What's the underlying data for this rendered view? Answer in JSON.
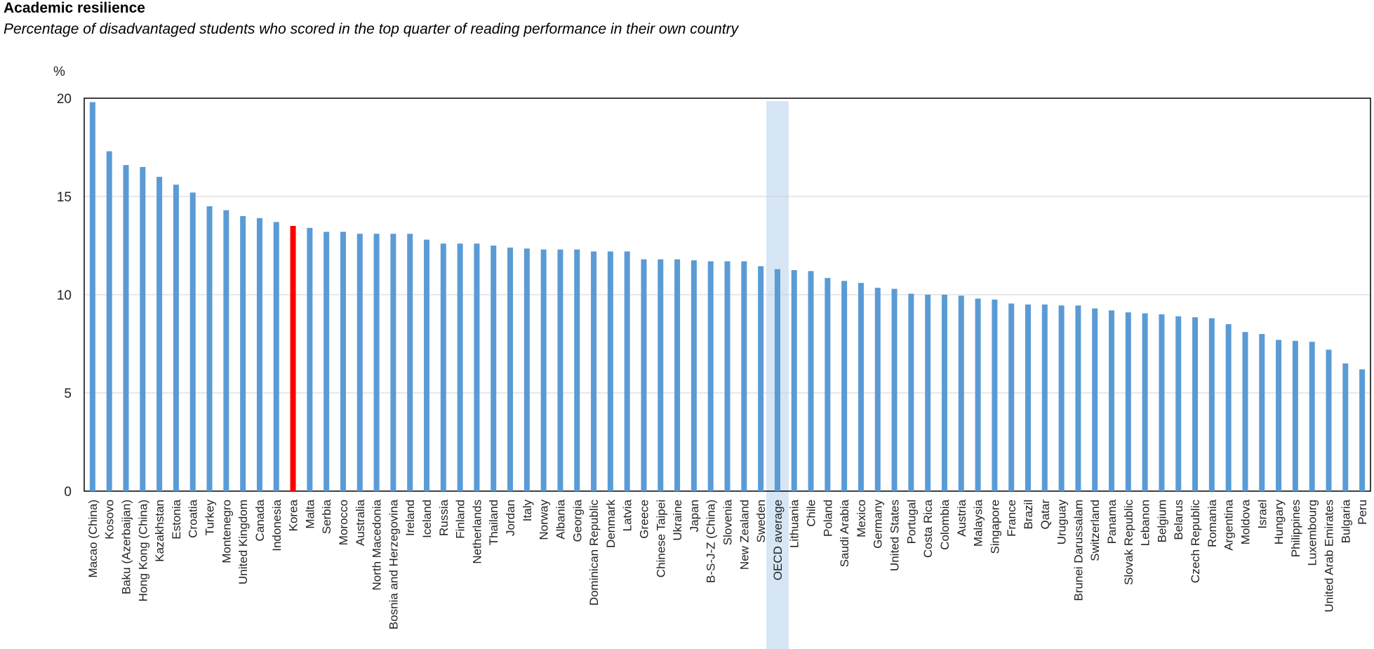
{
  "header": {
    "title": "Academic resilience",
    "subtitle": "Percentage of disadvantaged students who scored in the top quarter of reading performance in their own country"
  },
  "chart_data": {
    "type": "bar",
    "title": "Academic resilience",
    "subtitle": "Percentage of disadvantaged students who scored in the top quarter of reading performance in their own country",
    "ylabel": "%",
    "xlabel": "",
    "ylim": [
      0,
      20
    ],
    "yticks": [
      0,
      5,
      10,
      15,
      20
    ],
    "grid": true,
    "colors": {
      "bar": "#5b9bd5",
      "highlight": "#ff0000",
      "oecd_band": "#d6e6f5",
      "grid": "#d0d0d0"
    },
    "highlight_category": "Korea",
    "band_category": "OECD average",
    "categories": [
      "Macao (China)",
      "Kosovo",
      "Baku (Azerbaijan)",
      "Hong Kong (China)",
      "Kazakhstan",
      "Estonia",
      "Croatia",
      "Turkey",
      "Montenegro",
      "United Kingdom",
      "Canada",
      "Indonesia",
      "Korea",
      "Malta",
      "Serbia",
      "Morocco",
      "Australia",
      "North Macedonia",
      "Bosnia and Herzegovina",
      "Ireland",
      "Iceland",
      "Russia",
      "Finland",
      "Netherlands",
      "Thailand",
      "Jordan",
      "Italy",
      "Norway",
      "Albania",
      "Georgia",
      "Dominican Republic",
      "Denmark",
      "Latvia",
      "Greece",
      "Chinese Taipei",
      "Ukraine",
      "Japan",
      "B-S-J-Z (China)",
      "Slovenia",
      "New Zealand",
      "Sweden",
      "OECD average",
      "Lithuania",
      "Chile",
      "Poland",
      "Saudi Arabia",
      "Mexico",
      "Germany",
      "United States",
      "Portugal",
      "Costa Rica",
      "Colombia",
      "Austria",
      "Malaysia",
      "Singapore",
      "France",
      "Brazil",
      "Qatar",
      "Uruguay",
      "Brunei Darussalam",
      "Switzerland",
      "Panama",
      "Slovak Republic",
      "Lebanon",
      "Belgium",
      "Belarus",
      "Czech Republic",
      "Romania",
      "Argentina",
      "Moldova",
      "Israel",
      "Hungary",
      "Philippines",
      "Luxembourg",
      "United Arab Emirates",
      "Bulgaria",
      "Peru"
    ],
    "values": [
      19.8,
      17.3,
      16.6,
      16.5,
      16.0,
      15.6,
      15.2,
      14.5,
      14.3,
      14.0,
      13.9,
      13.7,
      13.5,
      13.4,
      13.2,
      13.2,
      13.1,
      13.1,
      13.1,
      13.1,
      12.8,
      12.6,
      12.6,
      12.6,
      12.5,
      12.4,
      12.35,
      12.3,
      12.3,
      12.3,
      12.2,
      12.2,
      12.2,
      11.8,
      11.8,
      11.8,
      11.75,
      11.7,
      11.7,
      11.7,
      11.45,
      11.3,
      11.25,
      11.2,
      10.85,
      10.7,
      10.6,
      10.35,
      10.3,
      10.05,
      10.0,
      10.0,
      9.95,
      9.8,
      9.75,
      9.55,
      9.5,
      9.5,
      9.45,
      9.45,
      9.3,
      9.2,
      9.1,
      9.05,
      9.0,
      8.9,
      8.85,
      8.8,
      8.5,
      8.1,
      8.0,
      7.7,
      7.65,
      7.6,
      7.2,
      6.5,
      6.2
    ]
  }
}
